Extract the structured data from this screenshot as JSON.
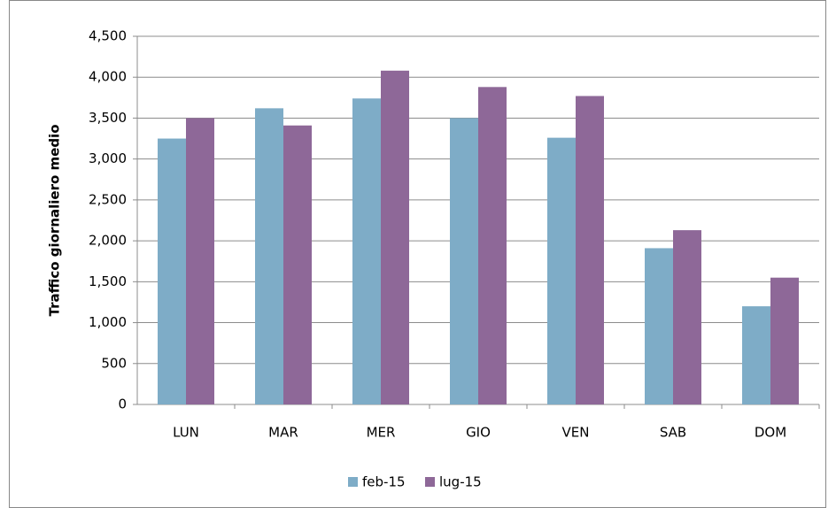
{
  "chart_data": {
    "type": "bar",
    "y_label": "Traffico giornaliero medio",
    "categories": [
      "LUN",
      "MAR",
      "MER",
      "GIO",
      "VEN",
      "SAB",
      "DOM"
    ],
    "series": [
      {
        "name": "feb-15",
        "color": "#7eacc7",
        "values": [
          3250,
          3620,
          3740,
          3500,
          3260,
          1910,
          1200
        ]
      },
      {
        "name": "lug-15",
        "color": "#8e6898",
        "values": [
          3500,
          3410,
          4080,
          3880,
          3770,
          2130,
          1550
        ]
      }
    ],
    "ylim": [
      0,
      4500
    ],
    "yticks": [
      0,
      500,
      {
        "value": 1000,
        "label": "1,000"
      },
      {
        "value": 1500,
        "label": "1,500"
      },
      {
        "value": 2000,
        "label": "2,000"
      },
      {
        "value": 2500,
        "label": "2,500"
      },
      {
        "value": 3000,
        "label": "3,000"
      },
      {
        "value": 3500,
        "label": "3,500"
      },
      {
        "value": 4000,
        "label": "4,000"
      },
      {
        "value": 4500,
        "label": "4,500"
      }
    ],
    "grid": true
  }
}
